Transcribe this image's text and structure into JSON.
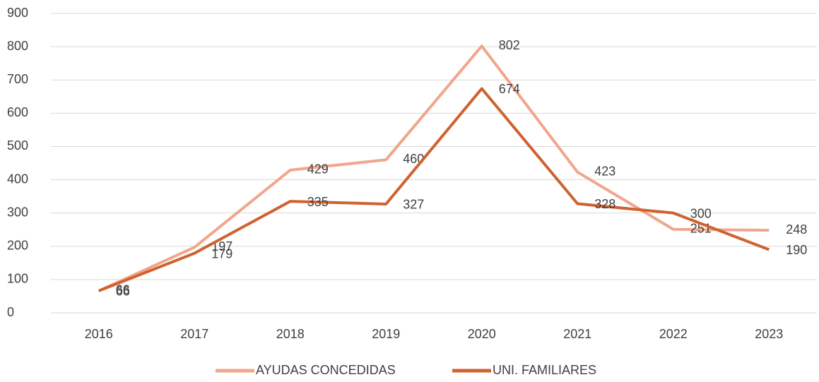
{
  "chart_data": {
    "type": "line",
    "categories": [
      "2016",
      "2017",
      "2018",
      "2019",
      "2020",
      "2021",
      "2022",
      "2023"
    ],
    "series": [
      {
        "name": "AYUDAS CONCEDIDAS",
        "color": "#f1a68c",
        "values": [
          66,
          197,
          429,
          460,
          802,
          423,
          251,
          248
        ]
      },
      {
        "name": "UNI. FAMILIARES",
        "color": "#cf6230",
        "values": [
          66,
          179,
          335,
          327,
          674,
          328,
          300,
          190
        ]
      }
    ],
    "ylim": [
      0,
      900
    ],
    "yticks": [
      0,
      100,
      200,
      300,
      400,
      500,
      600,
      700,
      800,
      900
    ],
    "grid": true,
    "legend": "bottom"
  }
}
